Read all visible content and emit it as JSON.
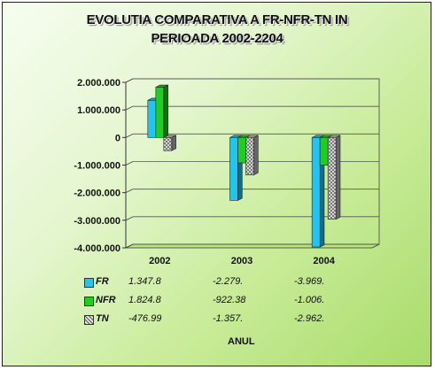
{
  "chart_data": {
    "type": "bar",
    "title": "EVOLUTIA COMPARATIVA A FR-NFR-TN IN PERIOADA 2002-2204",
    "title_lines": [
      "EVOLUTIA COMPARATIVA A FR-NFR-TN IN",
      "PERIOADA 2002-2204"
    ],
    "categories": [
      "2002",
      "2003",
      "2004"
    ],
    "series": [
      {
        "name": "FR",
        "values": [
          1347800,
          -2279000,
          -3969000
        ],
        "color": "#22c4f0"
      },
      {
        "name": "NFR",
        "values": [
          1824800,
          -922380,
          -1006000
        ],
        "color": "#22cc22"
      },
      {
        "name": "TN",
        "values": [
          -476990,
          -1357000,
          -2962000
        ],
        "color": "#c8c8c8"
      }
    ],
    "ylim": [
      -4000000,
      2000000
    ],
    "yticks": [
      2000000,
      1000000,
      0,
      -1000000,
      -2000000,
      -3000000,
      -4000000
    ],
    "ytick_labels": [
      "2.000.000",
      "1.000.000",
      "0",
      "-1.000.000",
      "-2.000.000",
      "-3.000.000",
      "-4.000.000"
    ],
    "xlabel": "ANUL",
    "grid": true,
    "data_table": [
      {
        "name": "FR",
        "cells": [
          "1.347.8",
          "-2.279.",
          "-3.969."
        ]
      },
      {
        "name": "NFR",
        "cells": [
          "1.824.8",
          "-922.38",
          "-1.006."
        ]
      },
      {
        "name": "TN",
        "cells": [
          "-476.99",
          "-1.357.",
          "-2.962."
        ]
      }
    ]
  }
}
